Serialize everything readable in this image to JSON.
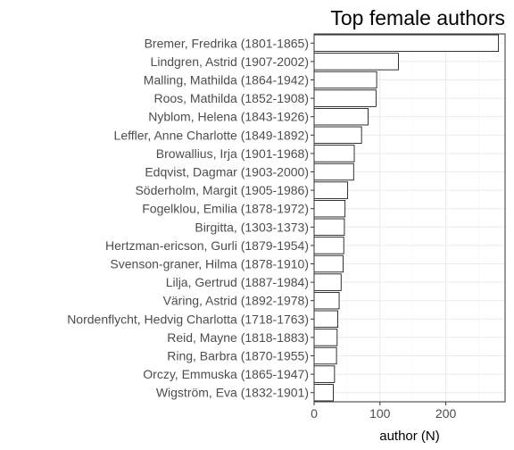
{
  "chart_data": {
    "type": "bar",
    "orientation": "horizontal",
    "title": "Top female authors",
    "xlabel": "author (N)",
    "ylabel": "",
    "xlim": [
      0,
      290
    ],
    "xticks": [
      0,
      100,
      200
    ],
    "grid": true,
    "bar_fill": "#ffffff",
    "bar_stroke": "#000000",
    "categories": [
      "Bremer, Fredrika (1801-1865)",
      "Lindgren, Astrid (1907-2002)",
      "Malling, Mathilda (1864-1942)",
      "Roos, Mathilda (1852-1908)",
      "Nyblom, Helena (1843-1926)",
      "Leffler, Anne Charlotte (1849-1892)",
      "Browallius, Irja (1901-1968)",
      "Edqvist, Dagmar (1903-2000)",
      "Söderholm, Margit (1905-1986)",
      "Fogelklou, Emilia (1878-1972)",
      "Birgitta,  (1303-1373)",
      "Hertzman-ericson, Gurli (1879-1954)",
      "Svenson-graner, Hilma (1878-1910)",
      "Lilja, Gertrud (1887-1984)",
      "Väring, Astrid (1892-1978)",
      "Nordenflycht, Hedvig Charlotta (1718-1763)",
      "Reid, Mayne (1818-1883)",
      "Ring, Barbra (1870-1955)",
      "Orczy, Emmuska (1865-1947)",
      "Wigström, Eva (1832-1901)"
    ],
    "values": [
      280,
      128,
      95,
      94,
      82,
      72,
      61,
      60,
      51,
      47,
      46,
      45,
      44,
      41,
      38,
      36,
      35,
      34,
      31,
      29
    ]
  }
}
